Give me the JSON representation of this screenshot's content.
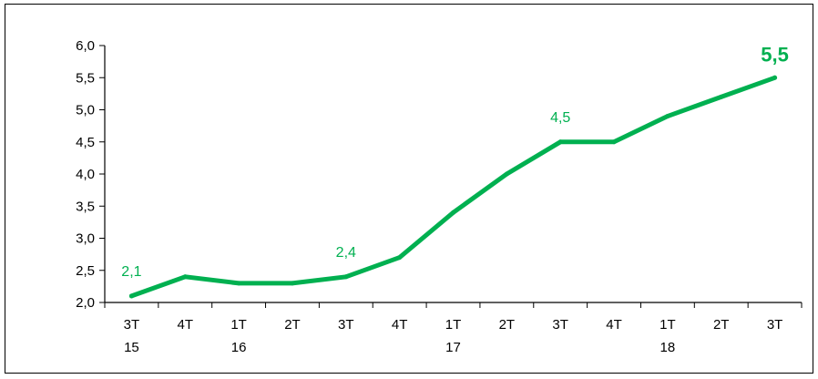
{
  "chart_data": {
    "type": "line",
    "title": "",
    "xlabel": "",
    "ylabel": "",
    "categories": [
      [
        "3T",
        "15"
      ],
      [
        "4T",
        ""
      ],
      [
        "1T",
        "16"
      ],
      [
        "2T",
        ""
      ],
      [
        "3T",
        ""
      ],
      [
        "4T",
        ""
      ],
      [
        "1T",
        "17"
      ],
      [
        "2T",
        ""
      ],
      [
        "3T",
        ""
      ],
      [
        "4T",
        ""
      ],
      [
        "1T",
        "18"
      ],
      [
        "2T",
        ""
      ],
      [
        "3T",
        ""
      ]
    ],
    "series": [
      {
        "values": [
          2.1,
          2.4,
          2.3,
          2.3,
          2.4,
          2.7,
          3.4,
          4.0,
          4.5,
          4.5,
          4.9,
          5.2,
          5.5
        ]
      }
    ],
    "ylim": [
      2.0,
      6.0
    ],
    "yticks": [
      "2,0",
      "2,5",
      "3,0",
      "3,5",
      "4,0",
      "4,5",
      "5,0",
      "5,5",
      "6,0"
    ],
    "data_labels": [
      {
        "index": 0,
        "text": "2,1"
      },
      {
        "index": 4,
        "text": "2,4"
      },
      {
        "index": 8,
        "text": "4,5"
      },
      {
        "index": 12,
        "text": "5,5",
        "emphasis": true
      }
    ],
    "grid": false,
    "legend": "none",
    "line_color": "#00b050"
  }
}
